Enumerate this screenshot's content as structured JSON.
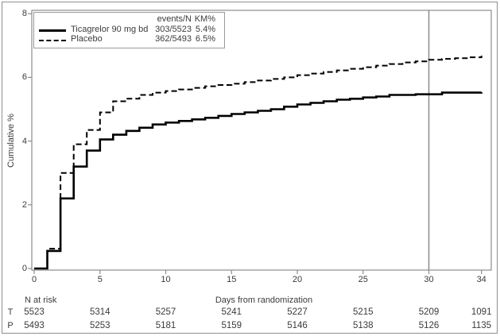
{
  "figure": {
    "ylabel": "Cumulative %",
    "xlabel": "Days from randomization"
  },
  "legend": {
    "header": {
      "events_n": "events/N",
      "km": "KM%"
    },
    "rows": [
      {
        "label": "Ticagrelor 90 mg bd",
        "events_n": "303/5523",
        "km": "5.4%",
        "line_style": "solid"
      },
      {
        "label": "Placebo",
        "events_n": "362/5493",
        "km": "6.5%",
        "line_style": "dashed"
      }
    ]
  },
  "at_risk": {
    "title": "N at risk",
    "times": [
      0,
      5,
      10,
      15,
      20,
      25,
      30,
      34
    ],
    "rows": [
      {
        "label": "T",
        "values": [
          "5523",
          "5314",
          "5257",
          "5241",
          "5227",
          "5215",
          "5209",
          "1091"
        ]
      },
      {
        "label": "P",
        "values": [
          "5493",
          "5253",
          "5181",
          "5159",
          "5146",
          "5138",
          "5126",
          "1135"
        ]
      }
    ]
  },
  "chart_data": {
    "type": "line",
    "subtype": "kaplan-meier-step",
    "title": "",
    "xlabel": "Days from randomization",
    "ylabel": "Cumulative %",
    "xlim": [
      0,
      34
    ],
    "ylim": [
      0,
      8
    ],
    "x_ticks": [
      0,
      5,
      10,
      15,
      20,
      25,
      30,
      34
    ],
    "y_ticks": [
      0,
      2,
      4,
      6,
      8
    ],
    "grid": false,
    "legend_position": "top-left",
    "reference_line_x": 30,
    "colors": {
      "curves": "#000000",
      "axis": "#8c8c8c",
      "reference_line": "#8c8c8c",
      "text": "#3b3b3b"
    },
    "series": [
      {
        "name": "Ticagrelor 90 mg bd",
        "style": "solid",
        "events_n": "303/5523",
        "km_pct": "5.4%",
        "points": [
          [
            0,
            0
          ],
          [
            1,
            0.55
          ],
          [
            2,
            2.2
          ],
          [
            3,
            3.2
          ],
          [
            4,
            3.7
          ],
          [
            5,
            4.05
          ],
          [
            6,
            4.2
          ],
          [
            7,
            4.32
          ],
          [
            8,
            4.42
          ],
          [
            9,
            4.52
          ],
          [
            10,
            4.58
          ],
          [
            11,
            4.63
          ],
          [
            12,
            4.68
          ],
          [
            13,
            4.73
          ],
          [
            14,
            4.79
          ],
          [
            15,
            4.85
          ],
          [
            16,
            4.9
          ],
          [
            17,
            4.95
          ],
          [
            18,
            5.0
          ],
          [
            19,
            5.08
          ],
          [
            20,
            5.15
          ],
          [
            21,
            5.2
          ],
          [
            22,
            5.25
          ],
          [
            23,
            5.3
          ],
          [
            24,
            5.33
          ],
          [
            25,
            5.37
          ],
          [
            26,
            5.4
          ],
          [
            27,
            5.45
          ],
          [
            29,
            5.47
          ],
          [
            31,
            5.52
          ],
          [
            34,
            5.53
          ]
        ]
      },
      {
        "name": "Placebo",
        "style": "dashed",
        "events_n": "362/5493",
        "km_pct": "6.5%",
        "points": [
          [
            0,
            0
          ],
          [
            1,
            0.62
          ],
          [
            2,
            3.0
          ],
          [
            3,
            3.9
          ],
          [
            4,
            4.35
          ],
          [
            5,
            4.9
          ],
          [
            6,
            5.25
          ],
          [
            7,
            5.33
          ],
          [
            8,
            5.45
          ],
          [
            9,
            5.52
          ],
          [
            10,
            5.57
          ],
          [
            11,
            5.62
          ],
          [
            12,
            5.67
          ],
          [
            13,
            5.72
          ],
          [
            14,
            5.76
          ],
          [
            15,
            5.8
          ],
          [
            16,
            5.85
          ],
          [
            17,
            5.9
          ],
          [
            18,
            5.95
          ],
          [
            19,
            6.0
          ],
          [
            20,
            6.07
          ],
          [
            21,
            6.12
          ],
          [
            22,
            6.17
          ],
          [
            23,
            6.22
          ],
          [
            24,
            6.27
          ],
          [
            25,
            6.32
          ],
          [
            26,
            6.37
          ],
          [
            27,
            6.42
          ],
          [
            28,
            6.47
          ],
          [
            29,
            6.5
          ],
          [
            30,
            6.55
          ],
          [
            31,
            6.58
          ],
          [
            32,
            6.6
          ],
          [
            33,
            6.63
          ],
          [
            34,
            6.68
          ]
        ]
      }
    ]
  }
}
